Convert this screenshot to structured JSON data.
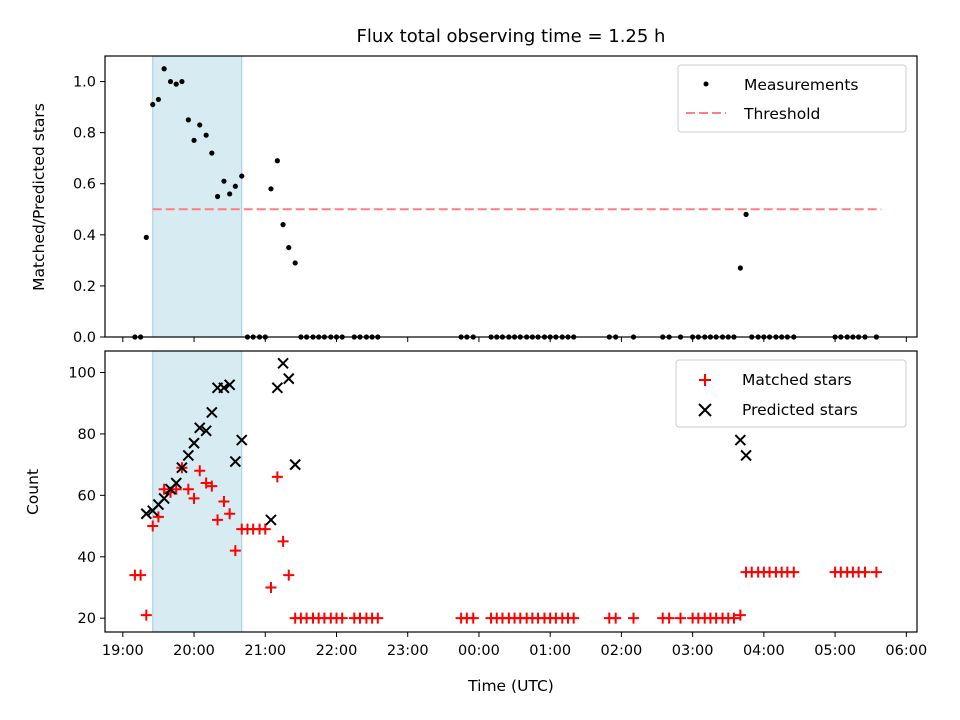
{
  "title": "Flux total observing time = 1.25 h",
  "chart_data": [
    {
      "type": "scatter",
      "xlabel": "",
      "ylabel": "Matched/Predicted stars",
      "xlim": [
        18.75,
        30.15
      ],
      "ylim": [
        0,
        1.1
      ],
      "yticks": [
        "0.0",
        "0.2",
        "0.4",
        "0.6",
        "0.8",
        "1.0"
      ],
      "xticks": [
        "19:00",
        "20:00",
        "21:00",
        "22:00",
        "23:00",
        "00:00",
        "01:00",
        "02:00",
        "03:00",
        "04:00",
        "05:00",
        "06:00"
      ],
      "shaded_interval": [
        19.42,
        20.67
      ],
      "threshold": {
        "name": "Threshold",
        "value": 0.5,
        "x_range": [
          19.42,
          29.65
        ],
        "color": "#ff7f7f"
      },
      "series": [
        {
          "name": "Measurements",
          "color": "#000000",
          "points": [
            [
              19.17,
              0
            ],
            [
              19.25,
              0
            ],
            [
              19.33,
              0.39
            ],
            [
              19.42,
              0.91
            ],
            [
              19.5,
              0.93
            ],
            [
              19.58,
              1.05
            ],
            [
              19.67,
              1.0
            ],
            [
              19.75,
              0.99
            ],
            [
              19.83,
              1.0
            ],
            [
              19.92,
              0.85
            ],
            [
              20.0,
              0.77
            ],
            [
              20.08,
              0.83
            ],
            [
              20.17,
              0.79
            ],
            [
              20.25,
              0.72
            ],
            [
              20.33,
              0.55
            ],
            [
              20.42,
              0.61
            ],
            [
              20.5,
              0.56
            ],
            [
              20.58,
              0.59
            ],
            [
              20.67,
              0.63
            ],
            [
              20.75,
              0
            ],
            [
              20.83,
              0
            ],
            [
              20.92,
              0
            ],
            [
              21.0,
              0
            ],
            [
              21.08,
              0.58
            ],
            [
              21.17,
              0.69
            ],
            [
              21.25,
              0.44
            ],
            [
              21.33,
              0.35
            ],
            [
              21.42,
              0.29
            ],
            [
              21.5,
              0
            ],
            [
              21.58,
              0
            ],
            [
              21.67,
              0
            ],
            [
              21.75,
              0
            ],
            [
              21.83,
              0
            ],
            [
              21.92,
              0
            ],
            [
              22.0,
              0
            ],
            [
              22.08,
              0
            ],
            [
              22.25,
              0
            ],
            [
              22.33,
              0
            ],
            [
              22.42,
              0
            ],
            [
              22.5,
              0
            ],
            [
              22.58,
              0
            ],
            [
              23.75,
              0
            ],
            [
              23.83,
              0
            ],
            [
              23.92,
              0
            ],
            [
              24.17,
              0
            ],
            [
              24.25,
              0
            ],
            [
              24.33,
              0
            ],
            [
              24.42,
              0
            ],
            [
              24.5,
              0
            ],
            [
              24.58,
              0
            ],
            [
              24.67,
              0
            ],
            [
              24.75,
              0
            ],
            [
              24.83,
              0
            ],
            [
              24.92,
              0
            ],
            [
              25.0,
              0
            ],
            [
              25.08,
              0
            ],
            [
              25.17,
              0
            ],
            [
              25.25,
              0
            ],
            [
              25.33,
              0
            ],
            [
              25.83,
              0
            ],
            [
              25.92,
              0
            ],
            [
              26.17,
              0
            ],
            [
              26.58,
              0
            ],
            [
              26.67,
              0
            ],
            [
              26.83,
              0
            ],
            [
              27.0,
              0
            ],
            [
              27.08,
              0
            ],
            [
              27.17,
              0
            ],
            [
              27.25,
              0
            ],
            [
              27.33,
              0
            ],
            [
              27.42,
              0
            ],
            [
              27.5,
              0
            ],
            [
              27.58,
              0
            ],
            [
              27.67,
              0.27
            ],
            [
              27.75,
              0.48
            ],
            [
              27.83,
              0
            ],
            [
              27.92,
              0
            ],
            [
              28.0,
              0
            ],
            [
              28.08,
              0
            ],
            [
              28.17,
              0
            ],
            [
              28.25,
              0
            ],
            [
              28.33,
              0
            ],
            [
              28.42,
              0
            ],
            [
              29.0,
              0
            ],
            [
              29.08,
              0
            ],
            [
              29.17,
              0
            ],
            [
              29.25,
              0
            ],
            [
              29.33,
              0
            ],
            [
              29.42,
              0
            ],
            [
              29.58,
              0
            ]
          ]
        }
      ],
      "legend": [
        "Measurements",
        "Threshold"
      ],
      "legend_position": "upper right"
    },
    {
      "type": "scatter",
      "xlabel": "Time (UTC)",
      "ylabel": "Count",
      "xlim": [
        18.75,
        30.15
      ],
      "ylim": [
        15.5,
        107
      ],
      "yticks": [
        "20",
        "40",
        "60",
        "80",
        "100"
      ],
      "xticks": [
        "19:00",
        "20:00",
        "21:00",
        "22:00",
        "23:00",
        "00:00",
        "01:00",
        "02:00",
        "03:00",
        "04:00",
        "05:00",
        "06:00"
      ],
      "shaded_interval": [
        19.42,
        20.67
      ],
      "series": [
        {
          "name": "Matched stars",
          "color": "#ff0000",
          "marker": "+",
          "points": [
            [
              19.17,
              34
            ],
            [
              19.25,
              34
            ],
            [
              19.33,
              21
            ],
            [
              19.42,
              50
            ],
            [
              19.5,
              53
            ],
            [
              19.58,
              62
            ],
            [
              19.67,
              61
            ],
            [
              19.75,
              62
            ],
            [
              19.83,
              69
            ],
            [
              19.92,
              62
            ],
            [
              20.0,
              59
            ],
            [
              20.08,
              68
            ],
            [
              20.17,
              64
            ],
            [
              20.25,
              63
            ],
            [
              20.33,
              52
            ],
            [
              20.42,
              58
            ],
            [
              20.5,
              54
            ],
            [
              20.58,
              42
            ],
            [
              20.67,
              49
            ],
            [
              20.75,
              49
            ],
            [
              20.83,
              49
            ],
            [
              20.92,
              49
            ],
            [
              21.0,
              49
            ],
            [
              21.08,
              30
            ],
            [
              21.17,
              66
            ],
            [
              21.25,
              45
            ],
            [
              21.33,
              34
            ],
            [
              21.42,
              20
            ],
            [
              21.5,
              20
            ],
            [
              21.58,
              20
            ],
            [
              21.67,
              20
            ],
            [
              21.75,
              20
            ],
            [
              21.83,
              20
            ],
            [
              21.92,
              20
            ],
            [
              22.0,
              20
            ],
            [
              22.08,
              20
            ],
            [
              22.25,
              20
            ],
            [
              22.33,
              20
            ],
            [
              22.42,
              20
            ],
            [
              22.5,
              20
            ],
            [
              22.58,
              20
            ],
            [
              23.75,
              20
            ],
            [
              23.83,
              20
            ],
            [
              23.92,
              20
            ],
            [
              24.17,
              20
            ],
            [
              24.25,
              20
            ],
            [
              24.33,
              20
            ],
            [
              24.42,
              20
            ],
            [
              24.5,
              20
            ],
            [
              24.58,
              20
            ],
            [
              24.67,
              20
            ],
            [
              24.75,
              20
            ],
            [
              24.83,
              20
            ],
            [
              24.92,
              20
            ],
            [
              25.0,
              20
            ],
            [
              25.08,
              20
            ],
            [
              25.17,
              20
            ],
            [
              25.25,
              20
            ],
            [
              25.33,
              20
            ],
            [
              25.83,
              20
            ],
            [
              25.92,
              20
            ],
            [
              26.17,
              20
            ],
            [
              26.58,
              20
            ],
            [
              26.67,
              20
            ],
            [
              26.83,
              20
            ],
            [
              27.0,
              20
            ],
            [
              27.08,
              20
            ],
            [
              27.17,
              20
            ],
            [
              27.25,
              20
            ],
            [
              27.33,
              20
            ],
            [
              27.42,
              20
            ],
            [
              27.5,
              20
            ],
            [
              27.58,
              20
            ],
            [
              27.67,
              21
            ],
            [
              27.75,
              35
            ],
            [
              27.83,
              35
            ],
            [
              27.92,
              35
            ],
            [
              28.0,
              35
            ],
            [
              28.08,
              35
            ],
            [
              28.17,
              35
            ],
            [
              28.25,
              35
            ],
            [
              28.33,
              35
            ],
            [
              28.42,
              35
            ],
            [
              29.0,
              35
            ],
            [
              29.08,
              35
            ],
            [
              29.17,
              35
            ],
            [
              29.25,
              35
            ],
            [
              29.33,
              35
            ],
            [
              29.42,
              35
            ],
            [
              29.58,
              35
            ]
          ]
        },
        {
          "name": "Predicted stars",
          "color": "#000000",
          "marker": "x",
          "points": [
            [
              19.33,
              54
            ],
            [
              19.42,
              55
            ],
            [
              19.5,
              57
            ],
            [
              19.58,
              59
            ],
            [
              19.67,
              62
            ],
            [
              19.75,
              64
            ],
            [
              19.83,
              69
            ],
            [
              19.92,
              73
            ],
            [
              20.0,
              77
            ],
            [
              20.08,
              82
            ],
            [
              20.17,
              81
            ],
            [
              20.25,
              87
            ],
            [
              20.33,
              95
            ],
            [
              20.42,
              95
            ],
            [
              20.5,
              96
            ],
            [
              20.58,
              71
            ],
            [
              20.67,
              78
            ],
            [
              21.08,
              52
            ],
            [
              21.17,
              95
            ],
            [
              21.25,
              103
            ],
            [
              21.33,
              98
            ],
            [
              21.42,
              70
            ],
            [
              27.67,
              78
            ],
            [
              27.75,
              73
            ]
          ]
        }
      ],
      "legend": [
        "Matched stars",
        "Predicted stars"
      ],
      "legend_position": "upper right"
    }
  ]
}
